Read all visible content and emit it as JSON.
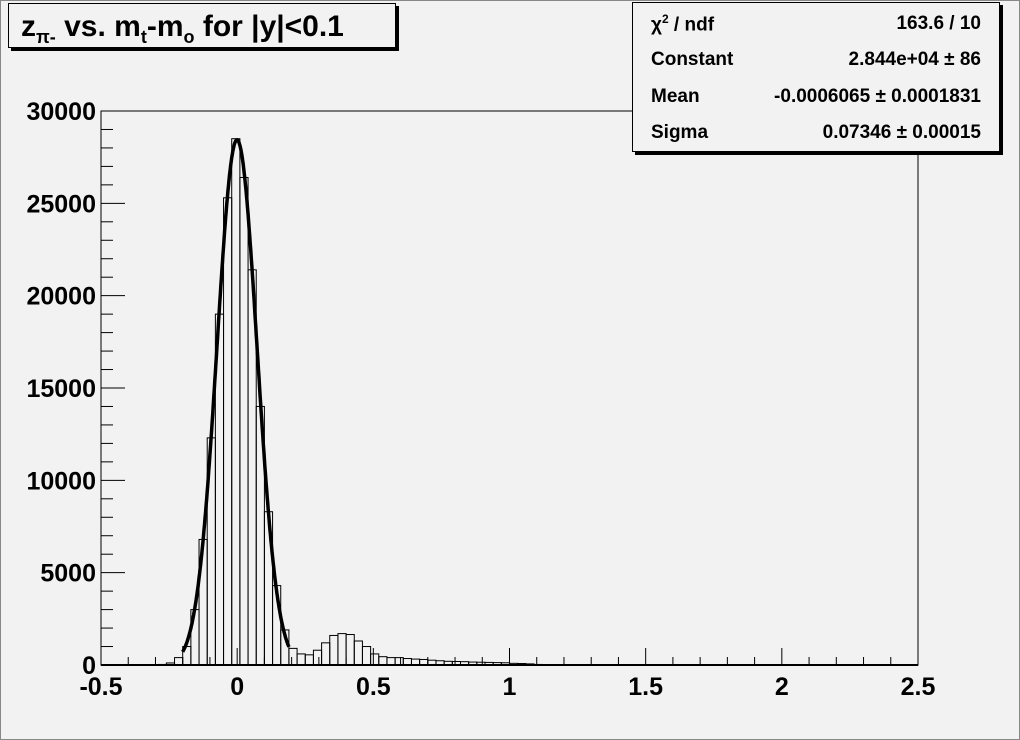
{
  "chart_data": {
    "type": "histogram",
    "title": {
      "base": "z",
      "sub": "π-",
      "mid": " vs. m",
      "sub2": "t",
      "mid2": "-m",
      "sub3": "o",
      "tail": " for |y|<0.1"
    },
    "xlim": [
      -0.5,
      2.5
    ],
    "ylim": [
      0,
      30000
    ],
    "x_tick_labels": [
      "-0.5",
      "0",
      "0.5",
      "1",
      "1.5",
      "2",
      "2.5"
    ],
    "y_tick_labels": [
      "0",
      "5000",
      "10000",
      "15000",
      "20000",
      "25000",
      "30000"
    ],
    "bin_width": 0.03,
    "bin_centers": [
      -0.275,
      -0.245,
      -0.215,
      -0.185,
      -0.155,
      -0.125,
      -0.095,
      -0.065,
      -0.035,
      -0.005,
      0.025,
      0.055,
      0.085,
      0.115,
      0.145,
      0.175,
      0.205,
      0.235,
      0.265,
      0.295,
      0.325,
      0.355,
      0.385,
      0.415,
      0.445,
      0.475,
      0.505,
      0.535,
      0.565,
      0.595,
      0.625,
      0.655,
      0.685,
      0.715,
      0.745,
      0.775,
      0.805,
      0.835,
      0.865,
      0.895,
      0.925,
      0.955,
      0.985,
      1.015,
      1.045,
      1.075,
      1.105,
      1.135,
      1.165,
      1.195,
      1.225,
      1.255,
      1.285,
      1.315,
      1.345,
      1.375,
      1.405,
      1.435,
      1.465,
      1.495,
      1.525,
      1.555,
      1.585,
      1.615,
      1.645
    ],
    "values": [
      30,
      110,
      400,
      1000,
      3000,
      6800,
      12300,
      19000,
      25300,
      28500,
      26400,
      21400,
      14000,
      8300,
      4300,
      1900,
      900,
      600,
      550,
      800,
      1200,
      1600,
      1700,
      1650,
      1300,
      1000,
      600,
      450,
      400,
      400,
      350,
      320,
      300,
      260,
      230,
      200,
      190,
      180,
      160,
      150,
      140,
      130,
      120,
      90,
      80,
      60,
      30,
      25,
      22,
      20,
      20,
      18,
      16,
      15,
      14,
      12,
      10,
      8,
      0,
      0,
      0,
      0,
      8,
      12,
      10
    ],
    "fit": {
      "function": "gaus",
      "constant": 28440,
      "mean": -0.0006065,
      "sigma": 0.07346,
      "range": [
        -0.2,
        0.19
      ]
    },
    "grid": false,
    "line_color": "#000000"
  },
  "stats": {
    "rows": [
      {
        "label": "χ",
        "label_sup": "2",
        "label_tail": " / ndf",
        "value": "163.6 / 10"
      },
      {
        "label": "Constant",
        "value": "2.844e+04 ± 86"
      },
      {
        "label": "Mean",
        "value": "-0.0006065 ± 0.0001831"
      },
      {
        "label": "Sigma",
        "value": "0.07346 ± 0.00015"
      }
    ]
  },
  "background_color": "#f2f2f2"
}
